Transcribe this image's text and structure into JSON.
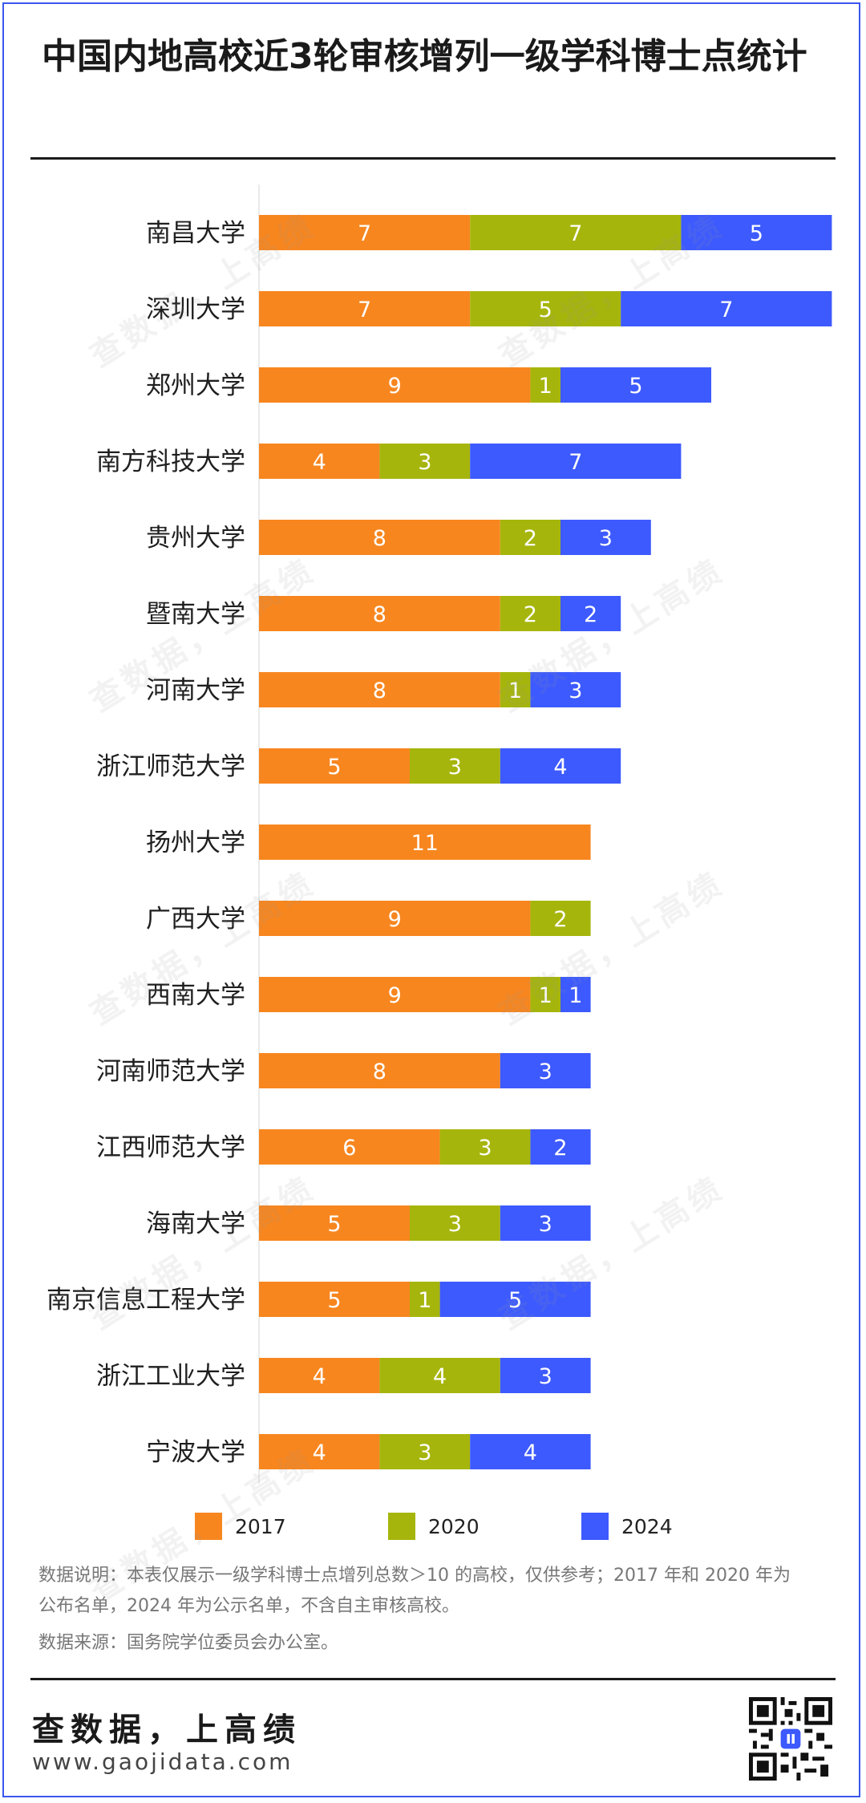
{
  "title": "中国内地高校近3轮审核增列一级学科博士点统计",
  "colors": {
    "2017": "#f7861f",
    "2020": "#a6b50c",
    "2024": "#3d5afe",
    "frame": "#3a57ee"
  },
  "chart_data": {
    "type": "bar",
    "orientation": "horizontal",
    "stacked": true,
    "categories": [
      "南昌大学",
      "深圳大学",
      "郑州大学",
      "南方科技大学",
      "贵州大学",
      "暨南大学",
      "河南大学",
      "浙江师范大学",
      "扬州大学",
      "广西大学",
      "西南大学",
      "河南师范大学",
      "江西师范大学",
      "海南大学",
      "南京信息工程大学",
      "浙江工业大学",
      "宁波大学"
    ],
    "series": [
      {
        "name": "2017",
        "color": "#f7861f",
        "values": [
          7,
          7,
          9,
          4,
          8,
          8,
          8,
          5,
          11,
          9,
          9,
          8,
          6,
          5,
          5,
          4,
          4
        ]
      },
      {
        "name": "2020",
        "color": "#a6b50c",
        "values": [
          7,
          5,
          1,
          3,
          2,
          2,
          1,
          3,
          0,
          2,
          1,
          0,
          3,
          3,
          1,
          4,
          3
        ]
      },
      {
        "name": "2024",
        "color": "#3d5afe",
        "values": [
          5,
          7,
          5,
          7,
          3,
          2,
          3,
          4,
          0,
          0,
          1,
          3,
          2,
          3,
          5,
          3,
          4
        ]
      }
    ],
    "xlim": [
      0,
      19
    ],
    "legend_position": "bottom"
  },
  "legend": [
    {
      "label": "2017",
      "color": "#f7861f"
    },
    {
      "label": "2020",
      "color": "#a6b50c"
    },
    {
      "label": "2024",
      "color": "#3d5afe"
    }
  ],
  "notes": {
    "line1": "数据说明：本表仅展示一级学科博士点增列总数＞10 的高校，仅供参考；2017 年和 2020 年为",
    "line2": "公布名单，2024 年为公示名单，不含自主审核高校。",
    "line3": "数据来源：国务院学位委员会办公室。"
  },
  "brand": {
    "name": "查数据，上高绩",
    "url": "www.gaojidata.com",
    "watermark": "查数据，上高绩 www.gaojidata.com"
  }
}
